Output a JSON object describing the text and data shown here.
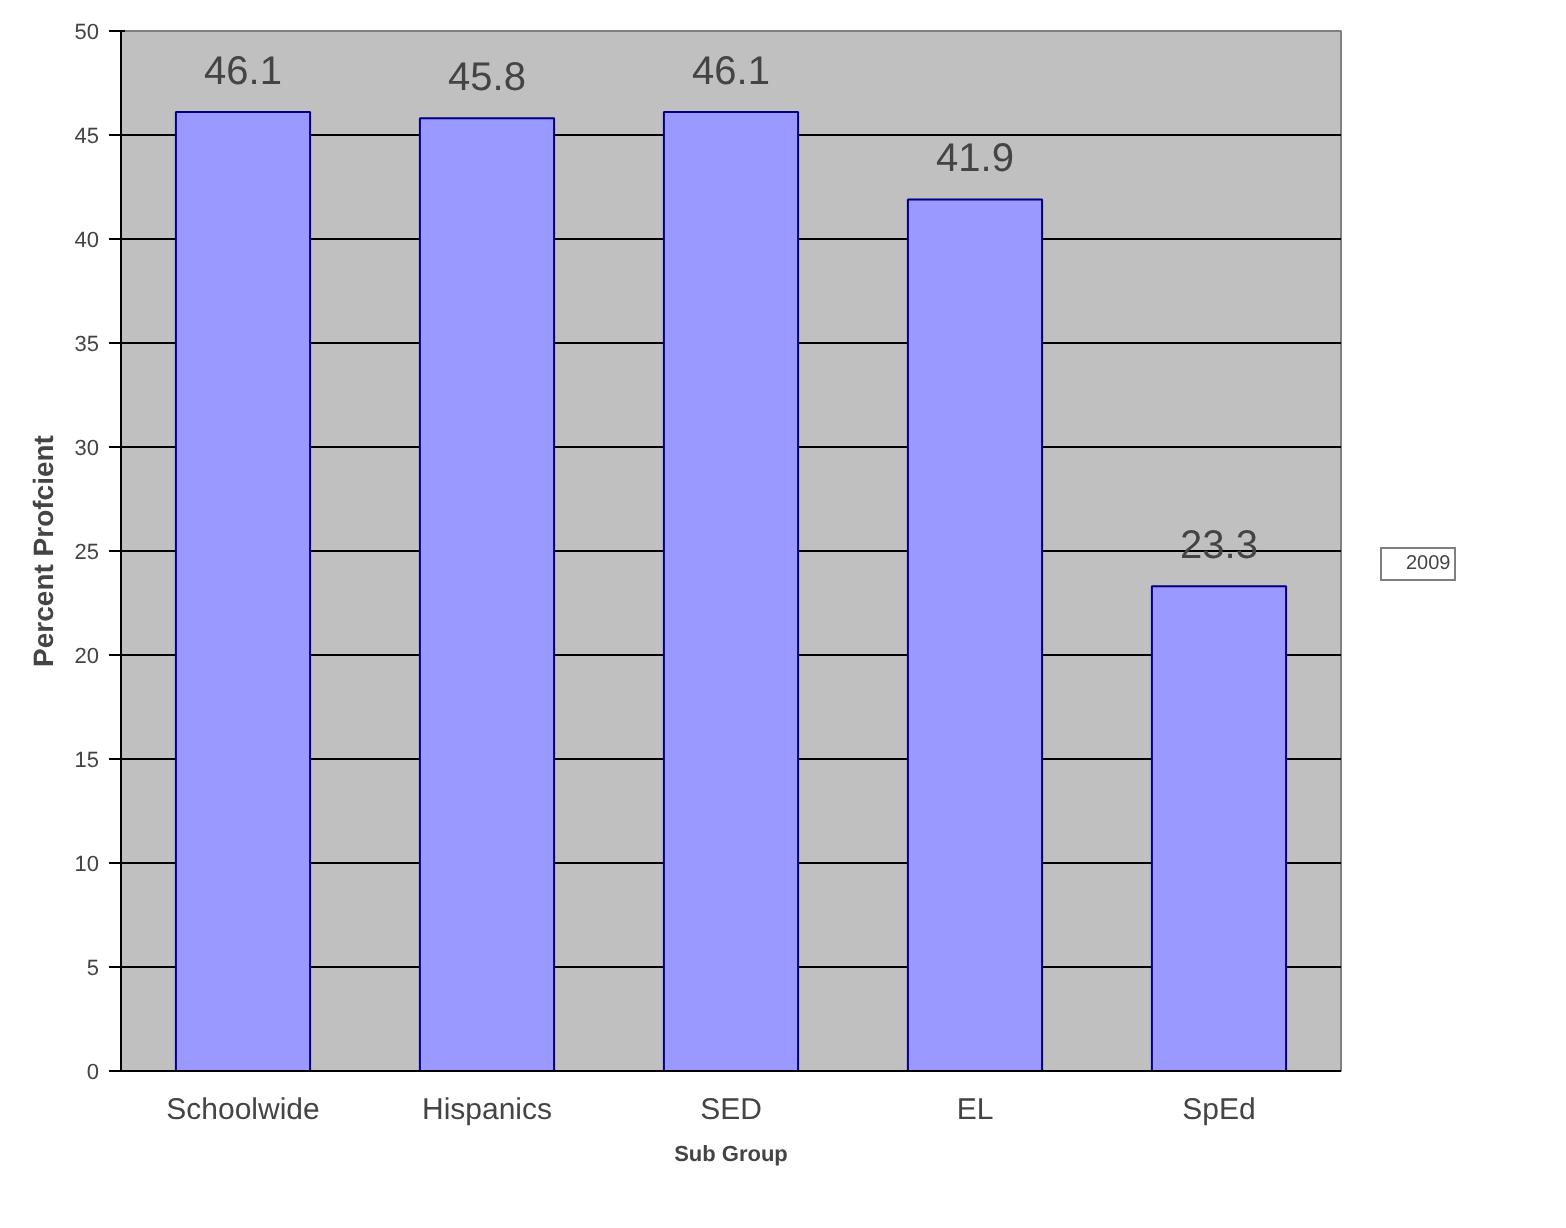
{
  "chart_data": {
    "type": "bar",
    "xlabel": "Sub Group",
    "ylabel": "Percent Profcient",
    "categories": [
      "Schoolwide",
      "Hispanics",
      "SED",
      "EL",
      "SpEd"
    ],
    "series": [
      {
        "name": "2009",
        "color": "#9999ff",
        "values": [
          46.1,
          45.8,
          46.1,
          41.9,
          23.3
        ]
      }
    ],
    "ylim": [
      0,
      50
    ],
    "yticks": [
      0,
      5,
      10,
      15,
      20,
      25,
      30,
      35,
      40,
      45,
      50
    ],
    "grid": "y",
    "legend": "right",
    "data_labels": true
  }
}
